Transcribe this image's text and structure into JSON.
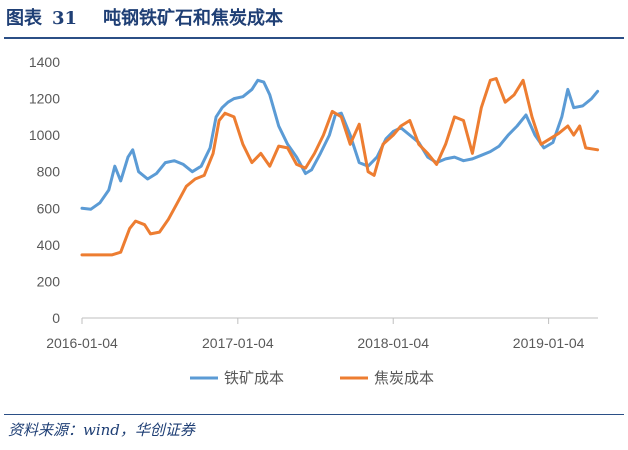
{
  "header": {
    "figure_label": "图表",
    "figure_number": "31",
    "title": "吨钢铁矿石和焦炭成本"
  },
  "source": "资料来源：wind，华创证券",
  "chart_data": {
    "type": "line",
    "title": "吨钢铁矿石和焦炭成本",
    "xlabel": "",
    "ylabel": "",
    "ylim": [
      0,
      1400
    ],
    "yticks": [
      0,
      200,
      400,
      600,
      800,
      1000,
      1200,
      1400
    ],
    "xlim": [
      "2016-01-04",
      "2019-04-30"
    ],
    "xticks": [
      "2016-01-04",
      "2017-01-04",
      "2018-01-04",
      "2019-01-04"
    ],
    "grid": "none",
    "legend": "bottom",
    "series": [
      {
        "name": "铁矿成本",
        "color": "#5b9bd5",
        "points": [
          [
            "2016-01-04",
            600
          ],
          [
            "2016-01-25",
            595
          ],
          [
            "2016-02-15",
            630
          ],
          [
            "2016-03-07",
            700
          ],
          [
            "2016-03-21",
            830
          ],
          [
            "2016-04-04",
            750
          ],
          [
            "2016-04-21",
            880
          ],
          [
            "2016-05-02",
            920
          ],
          [
            "2016-05-16",
            800
          ],
          [
            "2016-06-06",
            760
          ],
          [
            "2016-06-27",
            790
          ],
          [
            "2016-07-18",
            850
          ],
          [
            "2016-08-08",
            860
          ],
          [
            "2016-08-29",
            840
          ],
          [
            "2016-09-19",
            800
          ],
          [
            "2016-10-10",
            830
          ],
          [
            "2016-10-31",
            930
          ],
          [
            "2016-11-14",
            1100
          ],
          [
            "2016-11-28",
            1150
          ],
          [
            "2016-12-12",
            1180
          ],
          [
            "2016-12-26",
            1200
          ],
          [
            "2017-01-16",
            1210
          ],
          [
            "2017-02-06",
            1250
          ],
          [
            "2017-02-20",
            1300
          ],
          [
            "2017-03-06",
            1290
          ],
          [
            "2017-03-20",
            1220
          ],
          [
            "2017-04-10",
            1050
          ],
          [
            "2017-05-01",
            950
          ],
          [
            "2017-05-22",
            880
          ],
          [
            "2017-06-12",
            790
          ],
          [
            "2017-06-26",
            810
          ],
          [
            "2017-07-17",
            900
          ],
          [
            "2017-08-07",
            1000
          ],
          [
            "2017-08-21",
            1110
          ],
          [
            "2017-09-04",
            1120
          ],
          [
            "2017-09-25",
            1000
          ],
          [
            "2017-10-16",
            850
          ],
          [
            "2017-11-06",
            830
          ],
          [
            "2017-11-27",
            880
          ],
          [
            "2017-12-18",
            980
          ],
          [
            "2018-01-04",
            1020
          ],
          [
            "2018-01-22",
            1040
          ],
          [
            "2018-02-12",
            1000
          ],
          [
            "2018-03-05",
            960
          ],
          [
            "2018-03-26",
            880
          ],
          [
            "2018-04-16",
            850
          ],
          [
            "2018-05-07",
            870
          ],
          [
            "2018-05-28",
            880
          ],
          [
            "2018-06-18",
            860
          ],
          [
            "2018-07-09",
            870
          ],
          [
            "2018-07-30",
            890
          ],
          [
            "2018-08-20",
            910
          ],
          [
            "2018-09-10",
            940
          ],
          [
            "2018-10-01",
            1000
          ],
          [
            "2018-10-22",
            1050
          ],
          [
            "2018-11-12",
            1110
          ],
          [
            "2018-12-03",
            1000
          ],
          [
            "2018-12-24",
            930
          ],
          [
            "2019-01-14",
            960
          ],
          [
            "2019-02-04",
            1100
          ],
          [
            "2019-02-18",
            1250
          ],
          [
            "2019-03-04",
            1150
          ],
          [
            "2019-03-25",
            1160
          ],
          [
            "2019-04-15",
            1200
          ],
          [
            "2019-04-29",
            1240
          ]
        ]
      },
      {
        "name": "焦炭成本",
        "color": "#ed7d31",
        "points": [
          [
            "2016-01-04",
            345
          ],
          [
            "2016-03-14",
            345
          ],
          [
            "2016-04-04",
            360
          ],
          [
            "2016-04-25",
            490
          ],
          [
            "2016-05-09",
            530
          ],
          [
            "2016-05-30",
            510
          ],
          [
            "2016-06-13",
            460
          ],
          [
            "2016-07-04",
            470
          ],
          [
            "2016-07-25",
            540
          ],
          [
            "2016-08-15",
            630
          ],
          [
            "2016-09-05",
            720
          ],
          [
            "2016-09-26",
            760
          ],
          [
            "2016-10-17",
            780
          ],
          [
            "2016-11-07",
            900
          ],
          [
            "2016-11-21",
            1080
          ],
          [
            "2016-12-05",
            1120
          ],
          [
            "2016-12-26",
            1100
          ],
          [
            "2017-01-16",
            950
          ],
          [
            "2017-02-06",
            850
          ],
          [
            "2017-02-27",
            900
          ],
          [
            "2017-03-20",
            830
          ],
          [
            "2017-04-10",
            940
          ],
          [
            "2017-05-01",
            930
          ],
          [
            "2017-05-22",
            840
          ],
          [
            "2017-06-12",
            820
          ],
          [
            "2017-07-03",
            900
          ],
          [
            "2017-07-24",
            1000
          ],
          [
            "2017-08-14",
            1130
          ],
          [
            "2017-09-04",
            1100
          ],
          [
            "2017-09-25",
            950
          ],
          [
            "2017-10-16",
            1060
          ],
          [
            "2017-11-06",
            800
          ],
          [
            "2017-11-20",
            780
          ],
          [
            "2017-12-11",
            950
          ],
          [
            "2018-01-04",
            1000
          ],
          [
            "2018-01-22",
            1050
          ],
          [
            "2018-02-12",
            1080
          ],
          [
            "2018-03-05",
            950
          ],
          [
            "2018-03-26",
            900
          ],
          [
            "2018-04-16",
            840
          ],
          [
            "2018-05-07",
            950
          ],
          [
            "2018-05-28",
            1100
          ],
          [
            "2018-06-18",
            1080
          ],
          [
            "2018-07-09",
            900
          ],
          [
            "2018-07-30",
            1150
          ],
          [
            "2018-08-20",
            1300
          ],
          [
            "2018-09-03",
            1310
          ],
          [
            "2018-09-24",
            1180
          ],
          [
            "2018-10-15",
            1220
          ],
          [
            "2018-11-05",
            1300
          ],
          [
            "2018-11-26",
            1100
          ],
          [
            "2018-12-17",
            950
          ],
          [
            "2019-01-07",
            980
          ],
          [
            "2019-01-28",
            1010
          ],
          [
            "2019-02-18",
            1050
          ],
          [
            "2019-03-04",
            1000
          ],
          [
            "2019-03-18",
            1050
          ],
          [
            "2019-04-01",
            930
          ],
          [
            "2019-04-29",
            920
          ]
        ]
      }
    ]
  }
}
